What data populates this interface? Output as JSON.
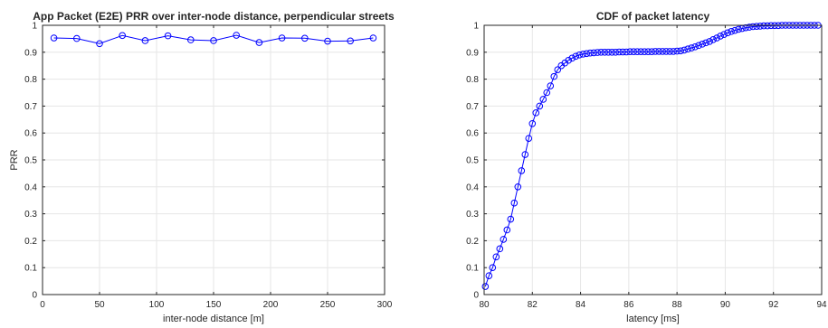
{
  "chart_data": [
    {
      "type": "line",
      "title": "App Packet (E2E) PRR over inter-node distance, perpendicular streets",
      "xlabel": "inter-node distance [m]",
      "ylabel": "PRR",
      "xlim": [
        0,
        300
      ],
      "ylim": [
        0,
        1
      ],
      "xticks": [
        0,
        50,
        100,
        150,
        200,
        250,
        300
      ],
      "yticks": [
        0,
        0.1,
        0.2,
        0.3,
        0.4,
        0.5,
        0.6,
        0.7,
        0.8,
        0.9,
        1
      ],
      "grid": true,
      "color": "#0000ff",
      "marker": "circle",
      "x": [
        10,
        30,
        50,
        70,
        90,
        110,
        130,
        150,
        170,
        190,
        210,
        230,
        250,
        270,
        290
      ],
      "y": [
        0.953,
        0.951,
        0.932,
        0.962,
        0.943,
        0.961,
        0.946,
        0.943,
        0.963,
        0.936,
        0.953,
        0.952,
        0.941,
        0.942,
        0.953
      ]
    },
    {
      "type": "line",
      "title": "CDF of packet latency",
      "xlabel": "latency [ms]",
      "ylabel": "",
      "xlim": [
        80,
        94
      ],
      "ylim": [
        0,
        1
      ],
      "xticks": [
        80,
        82,
        84,
        86,
        88,
        90,
        92,
        94
      ],
      "yticks": [
        0,
        0.1,
        0.2,
        0.3,
        0.4,
        0.5,
        0.6,
        0.7,
        0.8,
        0.9,
        1
      ],
      "grid": true,
      "color": "#0000ff",
      "marker": "circle",
      "x": [
        80.05,
        80.2,
        80.35,
        80.5,
        80.65,
        80.8,
        80.95,
        81.1,
        81.25,
        81.4,
        81.55,
        81.7,
        81.85,
        82.0,
        82.15,
        82.3,
        82.45,
        82.6,
        82.75,
        82.9,
        83.05,
        83.2,
        83.35,
        83.5,
        83.65,
        83.8,
        83.95,
        84.1,
        84.25,
        84.4,
        84.55,
        84.7,
        84.85,
        85.0,
        85.15,
        85.3,
        85.45,
        85.6,
        85.75,
        85.9,
        86.05,
        86.2,
        86.35,
        86.5,
        86.65,
        86.8,
        86.95,
        87.1,
        87.25,
        87.4,
        87.55,
        87.7,
        87.85,
        88.0,
        88.15,
        88.3,
        88.45,
        88.6,
        88.75,
        88.9,
        89.05,
        89.2,
        89.35,
        89.5,
        89.65,
        89.8,
        89.95,
        90.1,
        90.25,
        90.4,
        90.55,
        90.7,
        90.85,
        91.0,
        91.15,
        91.3,
        91.45,
        91.6,
        91.75,
        91.9,
        92.05,
        92.2,
        92.35,
        92.5,
        92.65,
        92.8,
        92.95,
        93.1,
        93.25,
        93.4,
        93.55,
        93.7,
        93.85
      ],
      "y": [
        0.03,
        0.07,
        0.1,
        0.14,
        0.17,
        0.205,
        0.24,
        0.28,
        0.34,
        0.4,
        0.46,
        0.52,
        0.58,
        0.635,
        0.675,
        0.7,
        0.725,
        0.75,
        0.775,
        0.81,
        0.835,
        0.85,
        0.86,
        0.87,
        0.878,
        0.885,
        0.89,
        0.893,
        0.895,
        0.897,
        0.898,
        0.899,
        0.9,
        0.9,
        0.9,
        0.9,
        0.9,
        0.901,
        0.901,
        0.901,
        0.902,
        0.902,
        0.902,
        0.902,
        0.902,
        0.902,
        0.902,
        0.903,
        0.903,
        0.903,
        0.903,
        0.903,
        0.903,
        0.904,
        0.905,
        0.908,
        0.912,
        0.916,
        0.92,
        0.925,
        0.93,
        0.935,
        0.94,
        0.947,
        0.953,
        0.96,
        0.966,
        0.972,
        0.977,
        0.981,
        0.985,
        0.988,
        0.991,
        0.993,
        0.995,
        0.996,
        0.997,
        0.998,
        0.998,
        0.999,
        0.999,
        0.999,
        1.0,
        1.0,
        1.0,
        1.0,
        1.0,
        1.0,
        1.0,
        1.0,
        1.0,
        1.0,
        1.0
      ]
    }
  ]
}
